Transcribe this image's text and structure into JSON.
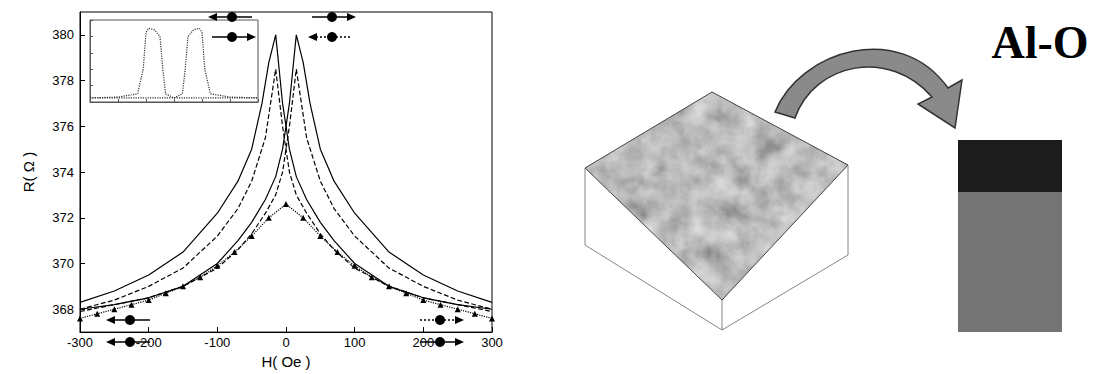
{
  "chart_data": [
    {
      "type": "line",
      "x_label": "H( Oe )",
      "y_label": "R( Ω )",
      "xlim": [
        -300,
        300
      ],
      "xticks": [
        -300,
        -200,
        -100,
        0,
        100,
        200,
        300
      ],
      "ylim": [
        367,
        381
      ],
      "yticks": [
        368,
        370,
        372,
        374,
        376,
        378,
        380
      ],
      "grid": false,
      "series": [
        {
          "color": "#000000",
          "line_style": "solid",
          "marker": "none",
          "x": [
            -300,
            -250,
            -200,
            -150,
            -100,
            -70,
            -50,
            -35,
            -25,
            -15,
            -5,
            5,
            15,
            30,
            50,
            70,
            100,
            150,
            200,
            250,
            300
          ],
          "values": [
            368.3,
            368.8,
            369.5,
            370.5,
            372.2,
            373.6,
            375.0,
            377.0,
            378.8,
            380.0,
            377.0,
            375.0,
            373.8,
            372.8,
            371.8,
            371.0,
            370.0,
            369.0,
            368.5,
            368.2,
            368.0
          ]
        },
        {
          "color": "#000000",
          "line_style": "solid",
          "marker": "none",
          "x": [
            -300,
            -250,
            -200,
            -150,
            -100,
            -70,
            -50,
            -30,
            -15,
            -5,
            5,
            15,
            25,
            35,
            50,
            70,
            100,
            150,
            200,
            250,
            300
          ],
          "values": [
            368.0,
            368.2,
            368.5,
            369.0,
            370.0,
            371.0,
            371.8,
            372.8,
            373.8,
            375.0,
            377.0,
            380.0,
            378.8,
            377.0,
            375.0,
            373.6,
            372.2,
            370.5,
            369.5,
            368.8,
            368.3
          ]
        },
        {
          "color": "#000000",
          "line_style": "dashed",
          "marker": "none",
          "x": [
            -300,
            -250,
            -200,
            -150,
            -100,
            -70,
            -50,
            -30,
            -15,
            -5,
            5,
            15,
            30,
            50,
            70,
            100,
            150,
            200,
            250,
            300
          ],
          "values": [
            368.0,
            368.4,
            369.0,
            369.8,
            371.2,
            372.4,
            373.6,
            375.5,
            378.5,
            376.0,
            374.0,
            373.0,
            372.2,
            371.3,
            370.6,
            369.8,
            369.0,
            368.5,
            368.2,
            367.9
          ]
        },
        {
          "color": "#000000",
          "line_style": "dashed",
          "marker": "none",
          "x": [
            -300,
            -250,
            -200,
            -150,
            -100,
            -70,
            -50,
            -30,
            -15,
            -5,
            5,
            15,
            30,
            50,
            70,
            100,
            150,
            200,
            250,
            300
          ],
          "values": [
            367.9,
            368.2,
            368.5,
            369.0,
            369.8,
            370.6,
            371.3,
            372.2,
            373.0,
            374.0,
            376.0,
            378.5,
            375.5,
            373.6,
            372.4,
            371.2,
            369.8,
            369.0,
            368.4,
            368.0
          ]
        },
        {
          "color": "#000000",
          "line_style": "dotted",
          "marker": "triangle",
          "x": [
            -300,
            -275,
            -250,
            -225,
            -200,
            -175,
            -150,
            -125,
            -100,
            -75,
            -50,
            -25,
            0,
            25,
            50,
            75,
            100,
            125,
            150,
            175,
            200,
            225,
            250,
            275,
            300
          ],
          "values": [
            367.6,
            367.8,
            368.0,
            368.2,
            368.4,
            368.7,
            369.0,
            369.4,
            369.9,
            370.5,
            371.2,
            372.0,
            372.6,
            372.0,
            371.2,
            370.5,
            369.9,
            369.4,
            369.0,
            368.7,
            368.4,
            368.2,
            368.0,
            367.8,
            367.6
          ]
        }
      ]
    },
    {
      "type": "line",
      "tick_labels": false,
      "xlim": [
        -300,
        300
      ],
      "xticks": [
        -300,
        -200,
        -100,
        0,
        100,
        200,
        300
      ],
      "ylim": [
        0,
        1
      ],
      "yticks": [
        0,
        0.2,
        0.4,
        0.6,
        0.8,
        1
      ],
      "grid": false,
      "series": [
        {
          "color": "#333333",
          "line_style": "dotted",
          "marker": "none",
          "x": [
            -300,
            -200,
            -130,
            -110,
            -100,
            -90,
            -70,
            -50,
            -40,
            -30,
            0,
            100,
            200,
            300
          ],
          "values": [
            0.05,
            0.06,
            0.1,
            0.4,
            0.85,
            0.9,
            0.88,
            0.8,
            0.4,
            0.1,
            0.05,
            0.05,
            0.05,
            0.05
          ]
        },
        {
          "color": "#333333",
          "line_style": "dotted",
          "marker": "none",
          "x": [
            -300,
            -200,
            -100,
            0,
            30,
            40,
            50,
            70,
            90,
            100,
            110,
            130,
            200,
            300
          ],
          "values": [
            0.05,
            0.05,
            0.05,
            0.05,
            0.1,
            0.4,
            0.8,
            0.88,
            0.9,
            0.85,
            0.4,
            0.1,
            0.06,
            0.05
          ]
        }
      ]
    }
  ],
  "diagram": {
    "label": "Al-O"
  }
}
